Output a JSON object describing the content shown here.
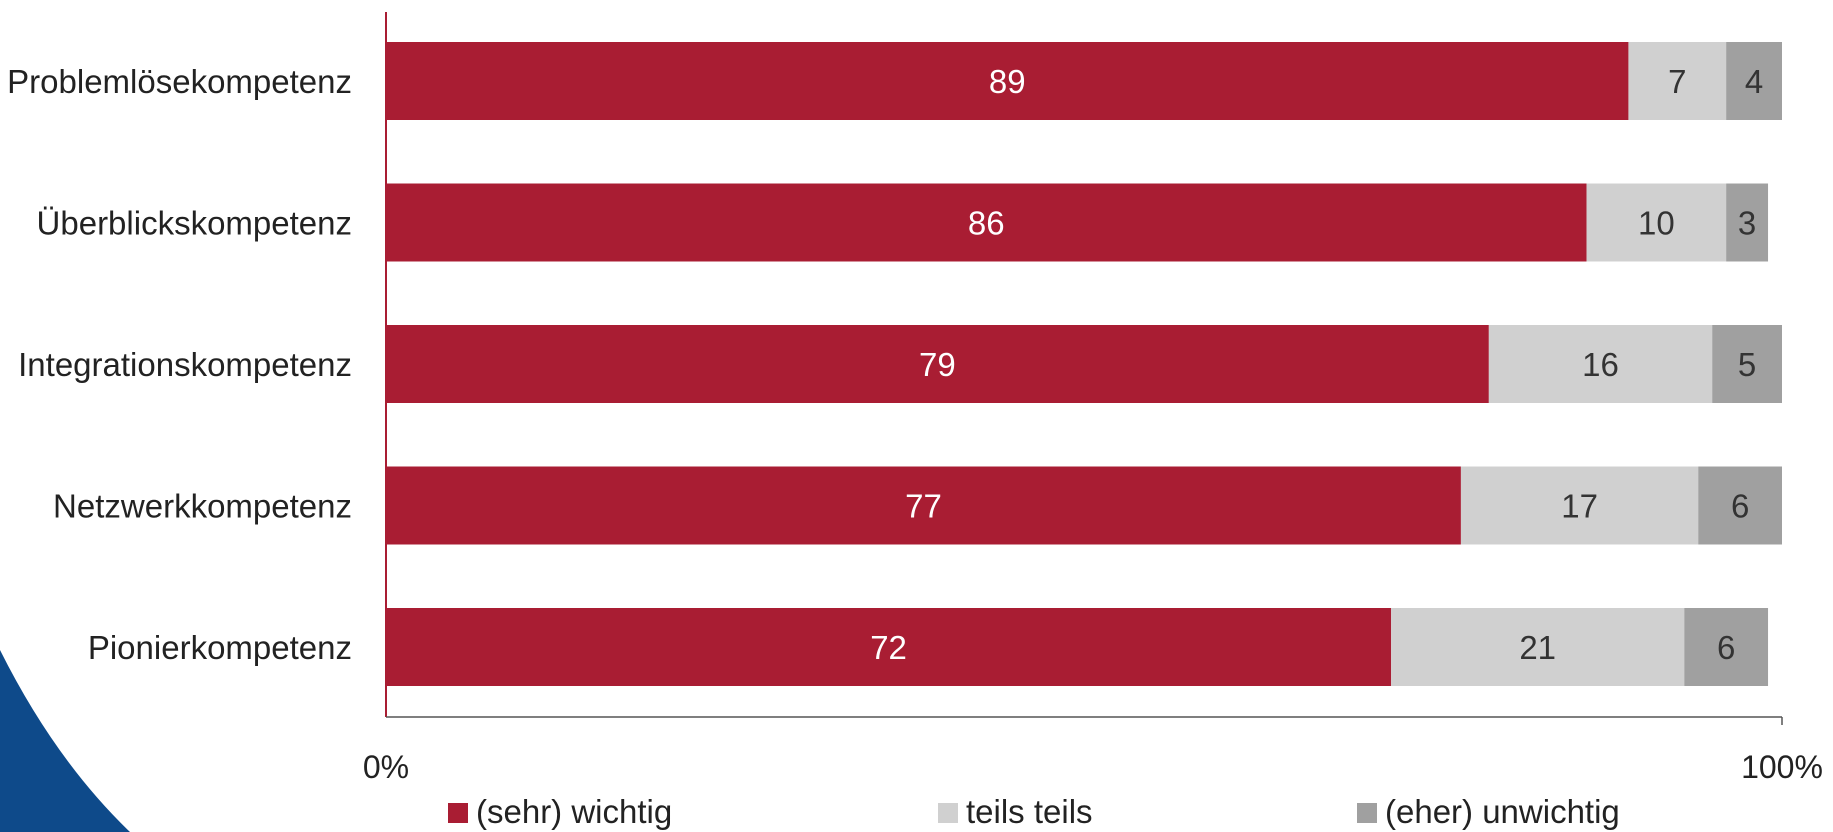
{
  "chart_data": {
    "type": "bar",
    "orientation": "horizontal",
    "stacked": true,
    "categories": [
      "Problemlösekompetenz",
      "Überblickskompetenz",
      "Integrationskompetenz",
      "Netzwerkkompetenz",
      "Pionierkompetenz"
    ],
    "series": [
      {
        "name": "(sehr) wichtig",
        "values": [
          89,
          86,
          79,
          77,
          72
        ],
        "color": "#a91d33"
      },
      {
        "name": "teils teils",
        "values": [
          7,
          10,
          16,
          17,
          21
        ],
        "color": "#d0d0d0"
      },
      {
        "name": "(eher) unwichtig",
        "values": [
          4,
          3,
          5,
          6,
          6
        ],
        "color": "#a0a0a0"
      }
    ],
    "xlim": [
      0,
      100
    ],
    "x_ticks": [
      "0%",
      "100%"
    ],
    "legend_position": "bottom",
    "grid": false,
    "axis_color": "#a91d33"
  },
  "decoration": {
    "corner_shape": "blue-logo-arc",
    "corner_color": "#0e4a8a"
  }
}
